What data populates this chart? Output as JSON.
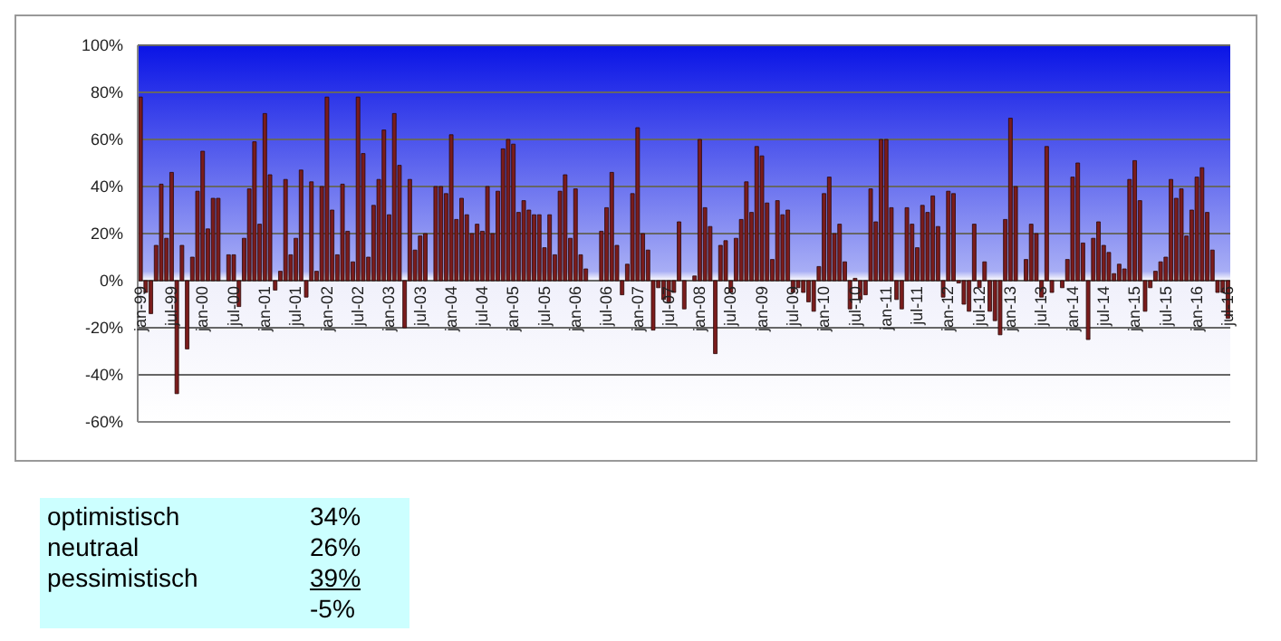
{
  "chart_data": {
    "type": "bar",
    "categories": [
      "jan-99",
      null,
      null,
      null,
      null,
      null,
      "jul-99",
      null,
      null,
      null,
      null,
      null,
      "jan-00",
      null,
      null,
      null,
      null,
      null,
      "jul-00",
      null,
      null,
      null,
      null,
      null,
      "jan-01",
      null,
      null,
      null,
      null,
      null,
      "jul-01",
      null,
      null,
      null,
      null,
      null,
      "jan-02",
      null,
      null,
      null,
      null,
      null,
      "jul-02",
      null,
      null,
      null,
      null,
      null,
      "jan-03",
      null,
      null,
      null,
      null,
      null,
      "jul-03",
      null,
      null,
      null,
      null,
      null,
      "jan-04",
      null,
      null,
      null,
      null,
      null,
      "jul-04",
      null,
      null,
      null,
      null,
      null,
      "jan-05",
      null,
      null,
      null,
      null,
      null,
      "jul-05",
      null,
      null,
      null,
      null,
      null,
      "jan-06",
      null,
      null,
      null,
      null,
      null,
      "jul-06",
      null,
      null,
      null,
      null,
      null,
      "jan-07",
      null,
      null,
      null,
      null,
      null,
      "jul-07",
      null,
      null,
      null,
      null,
      null,
      "jan-08",
      null,
      null,
      null,
      null,
      null,
      "jul-08",
      null,
      null,
      null,
      null,
      null,
      "jan-09",
      null,
      null,
      null,
      null,
      null,
      "jul-09",
      null,
      null,
      null,
      null,
      null,
      "jan-10",
      null,
      null,
      null,
      null,
      null,
      "jul-10",
      null,
      null,
      null,
      null,
      null,
      "jan-11",
      null,
      null,
      null,
      null,
      null,
      "jul-11",
      null,
      null,
      null,
      null,
      null,
      "jan-12",
      null,
      null,
      null,
      null,
      null,
      "jul-12",
      null,
      null,
      null,
      null,
      null,
      "jan-13",
      null,
      null,
      null,
      null,
      null,
      "jul-13",
      null,
      null,
      null,
      null,
      null,
      "jan-14",
      null,
      null,
      null,
      null,
      null,
      "jul-14",
      null,
      null,
      null,
      null,
      null,
      "jan-15",
      null,
      null,
      null,
      null,
      null,
      "jul-15",
      null,
      null,
      null,
      null,
      null,
      "jan-16",
      null,
      null,
      null,
      null,
      null,
      "jul-16"
    ],
    "series": [
      {
        "color": "#7a1c1c",
        "values": [
          78,
          -5,
          -14,
          15,
          41,
          18,
          46,
          -48,
          15,
          -29,
          10,
          38,
          55,
          22,
          35,
          35,
          0,
          11,
          11,
          -11,
          18,
          39,
          59,
          24,
          71,
          45,
          -4,
          4,
          43,
          11,
          18,
          47,
          -7,
          42,
          4,
          40,
          78,
          30,
          11,
          41,
          21,
          8,
          78,
          54,
          10,
          32,
          43,
          64,
          28,
          71,
          49,
          -20,
          43,
          13,
          19,
          20,
          0,
          40,
          40,
          37,
          62,
          26,
          35,
          28,
          20,
          24,
          21,
          40,
          20,
          38,
          56,
          60,
          58,
          29,
          34,
          30,
          28,
          28,
          14,
          28,
          11,
          38,
          45,
          18,
          39,
          11,
          5,
          0,
          0,
          21,
          31,
          46,
          15,
          -6,
          7,
          37,
          65,
          20,
          13,
          -21,
          -3,
          -8,
          -9,
          -5,
          25,
          -12,
          0,
          2,
          60,
          31,
          23,
          -31,
          15,
          17,
          -5,
          18,
          26,
          42,
          29,
          57,
          53,
          33,
          9,
          34,
          28,
          30,
          -5,
          -3,
          -5,
          -9,
          -13,
          6,
          37,
          44,
          20,
          24,
          8,
          -12,
          1,
          -8,
          -6,
          39,
          25,
          60,
          60,
          31,
          -8,
          -12,
          31,
          24,
          14,
          32,
          29,
          36,
          23,
          -7,
          38,
          37,
          -1,
          -10,
          -13,
          24,
          -3,
          8,
          -13,
          -17,
          -23,
          26,
          69,
          40,
          0,
          9,
          24,
          20,
          -7,
          57,
          -5,
          0,
          -3,
          9,
          44,
          50,
          16,
          -25,
          18,
          25,
          15,
          12,
          3,
          7,
          5,
          43,
          51,
          34,
          -13,
          -3,
          4,
          8,
          10,
          43,
          35,
          39,
          19,
          30,
          44,
          48,
          29,
          13,
          -5,
          -5,
          -16
        ]
      }
    ],
    "ylim": [
      -60,
      100
    ],
    "yticks": [
      {
        "value": -60,
        "label": "-60%"
      },
      {
        "value": -40,
        "label": "-40%"
      },
      {
        "value": -20,
        "label": "-20%"
      },
      {
        "value": 0,
        "label": "0%"
      },
      {
        "value": 20,
        "label": "20%"
      },
      {
        "value": 40,
        "label": "40%"
      },
      {
        "value": 60,
        "label": "60%"
      },
      {
        "value": 80,
        "label": "80%"
      },
      {
        "value": 100,
        "label": "100%"
      }
    ],
    "grid": "y",
    "annotations": [
      "optimistisch",
      "34%",
      "neutraal",
      "26%",
      "pessimistisch",
      "39%",
      "-5%"
    ]
  }
}
